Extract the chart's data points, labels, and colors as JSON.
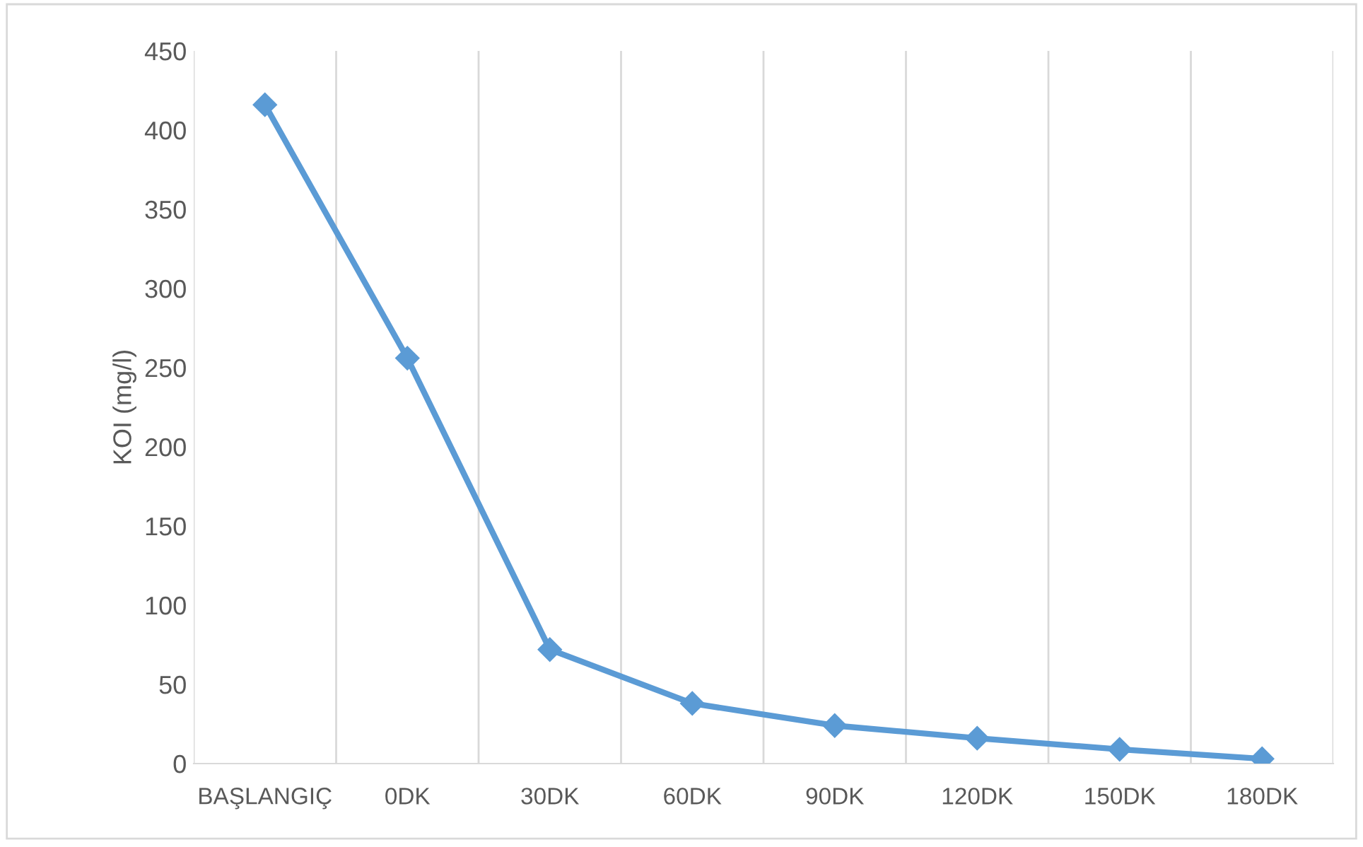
{
  "chart_data": {
    "type": "line",
    "ylabel": "KOI (mg/l)",
    "categories": [
      "BAŞLANGIÇ",
      "0DK",
      "30DK",
      "60DK",
      "90DK",
      "120DK",
      "150DK",
      "180DK"
    ],
    "series": [
      {
        "color": "#5b9bd5",
        "values": [
          416,
          256,
          72,
          38,
          24,
          16,
          9,
          3
        ]
      }
    ],
    "ylim": [
      0,
      450
    ],
    "yticks": [
      0,
      50,
      100,
      150,
      200,
      250,
      300,
      350,
      400,
      450
    ],
    "grid": "x",
    "marker": "diamond",
    "line_style": "solid"
  }
}
